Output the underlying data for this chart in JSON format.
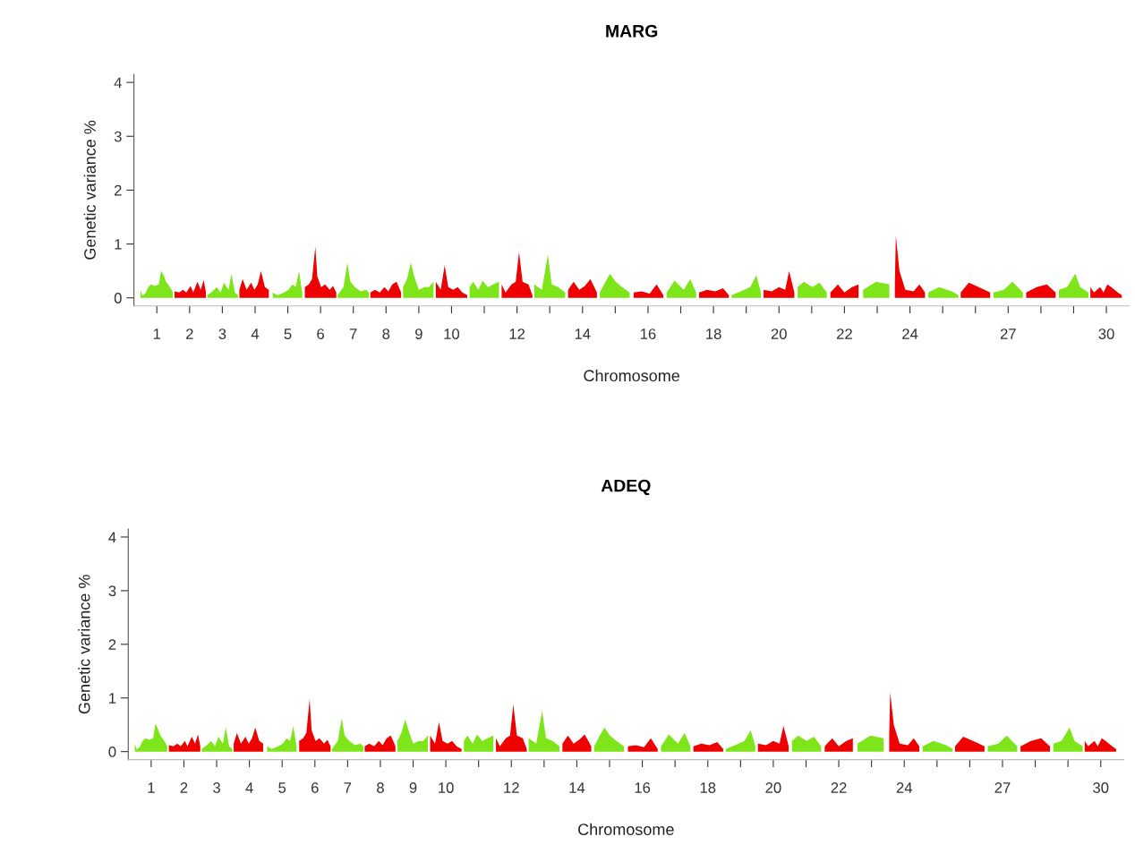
{
  "chart_data": [
    {
      "type": "area",
      "title": "MARG",
      "xlabel": "Chromosome",
      "ylabel": "Genetic variance %",
      "xlim": [
        0.3,
        30.7
      ],
      "ylim": [
        -0.15,
        4.15
      ],
      "yticks": [
        0,
        1,
        2,
        3,
        4
      ],
      "xticks": [
        1,
        2,
        3,
        4,
        5,
        6,
        7,
        8,
        9,
        10,
        {
          "value": 11,
          "label": null
        },
        12,
        {
          "value": 13,
          "label": null
        },
        14,
        {
          "value": 15,
          "label": null
        },
        16,
        {
          "value": 17,
          "label": null
        },
        18,
        {
          "value": 19,
          "label": null
        },
        20,
        {
          "value": 21,
          "label": null
        },
        22,
        {
          "value": 23,
          "label": null
        },
        24,
        {
          "value": 25,
          "label": null
        },
        {
          "value": 26,
          "label": null
        },
        27,
        {
          "value": 28,
          "label": null
        },
        {
          "value": 29,
          "label": null
        },
        30
      ],
      "series": [
        {
          "color": "#7ee51a",
          "x": [
            0.5,
            0.56,
            0.65,
            0.74,
            0.82,
            0.94,
            1.06,
            1.13,
            1.21,
            1.28,
            1.38,
            1.49
          ],
          "values": [
            0.15,
            0.04,
            0.08,
            0.2,
            0.25,
            0.22,
            0.25,
            0.5,
            0.42,
            0.3,
            0.22,
            0.1
          ]
        },
        {
          "color": "#ee0000",
          "x": [
            1.54,
            1.68,
            1.8,
            1.9,
            2.03,
            2.11,
            2.24,
            2.34,
            2.43,
            2.5
          ],
          "values": [
            0.12,
            0.1,
            0.15,
            0.1,
            0.22,
            0.1,
            0.3,
            0.15,
            0.33,
            0.1
          ]
        },
        {
          "color": "#7ee51a",
          "x": [
            2.54,
            2.7,
            2.83,
            2.95,
            3.05,
            3.19,
            3.28,
            3.38,
            3.48
          ],
          "values": [
            0.05,
            0.12,
            0.2,
            0.1,
            0.28,
            0.15,
            0.45,
            0.1,
            0.05
          ]
        },
        {
          "color": "#ee0000",
          "x": [
            3.52,
            3.62,
            3.74,
            3.88,
            3.98,
            4.08,
            4.18,
            4.3,
            4.42
          ],
          "values": [
            0.15,
            0.35,
            0.15,
            0.28,
            0.15,
            0.25,
            0.5,
            0.2,
            0.15
          ]
        },
        {
          "color": "#7ee51a",
          "x": [
            4.54,
            4.68,
            4.88,
            5.02,
            5.14,
            5.24,
            5.34,
            5.44
          ],
          "values": [
            0.1,
            0.05,
            0.1,
            0.15,
            0.25,
            0.2,
            0.5,
            0.1
          ]
        },
        {
          "color": "#ee0000",
          "x": [
            5.52,
            5.64,
            5.74,
            5.84,
            5.9,
            6.02,
            6.14,
            6.28,
            6.38,
            6.48
          ],
          "values": [
            0.2,
            0.25,
            0.35,
            0.95,
            0.4,
            0.2,
            0.25,
            0.15,
            0.22,
            0.1
          ]
        },
        {
          "color": "#7ee51a",
          "x": [
            6.52,
            6.7,
            6.82,
            6.91,
            7.05,
            7.23,
            7.39,
            7.48
          ],
          "values": [
            0.05,
            0.2,
            0.65,
            0.3,
            0.2,
            0.12,
            0.15,
            0.1
          ]
        },
        {
          "color": "#ee0000",
          "x": [
            7.52,
            7.66,
            7.81,
            7.95,
            8.07,
            8.19,
            8.32,
            8.46
          ],
          "values": [
            0.1,
            0.15,
            0.1,
            0.2,
            0.12,
            0.25,
            0.3,
            0.1
          ]
        },
        {
          "color": "#7ee51a",
          "x": [
            8.52,
            8.64,
            8.76,
            8.86,
            9.0,
            9.17,
            9.31,
            9.45
          ],
          "values": [
            0.2,
            0.35,
            0.65,
            0.4,
            0.15,
            0.2,
            0.2,
            0.3
          ]
        },
        {
          "color": "#ee0000",
          "x": [
            9.52,
            9.67,
            9.79,
            9.9,
            10.05,
            10.19,
            10.33,
            10.48
          ],
          "values": [
            0.3,
            0.15,
            0.6,
            0.2,
            0.15,
            0.2,
            0.1,
            0.05
          ]
        },
        {
          "color": "#7ee51a",
          "x": [
            10.55,
            10.66,
            10.82,
            10.95,
            11.11,
            11.27,
            11.45
          ],
          "values": [
            0.2,
            0.3,
            0.15,
            0.32,
            0.2,
            0.25,
            0.3
          ]
        },
        {
          "color": "#ee0000",
          "x": [
            11.53,
            11.65,
            11.83,
            11.96,
            12.06,
            12.17,
            12.35,
            12.47
          ],
          "values": [
            0.25,
            0.1,
            0.25,
            0.3,
            0.85,
            0.3,
            0.25,
            0.05
          ]
        },
        {
          "color": "#7ee51a",
          "x": [
            12.53,
            12.76,
            12.94,
            13.06,
            13.26,
            13.47
          ],
          "values": [
            0.25,
            0.15,
            0.8,
            0.25,
            0.2,
            0.1
          ]
        },
        {
          "color": "#ee0000",
          "x": [
            13.56,
            13.73,
            13.9,
            14.07,
            14.24,
            14.44
          ],
          "values": [
            0.15,
            0.3,
            0.15,
            0.22,
            0.35,
            0.1
          ]
        },
        {
          "color": "#7ee51a",
          "x": [
            14.53,
            14.7,
            14.84,
            15.01,
            15.21,
            15.44
          ],
          "values": [
            0.1,
            0.3,
            0.45,
            0.3,
            0.2,
            0.1
          ]
        },
        {
          "color": "#ee0000",
          "x": [
            15.56,
            15.8,
            16.05,
            16.26,
            16.47
          ],
          "values": [
            0.1,
            0.12,
            0.08,
            0.25,
            0.05
          ]
        },
        {
          "color": "#7ee51a",
          "x": [
            16.57,
            16.81,
            17.09,
            17.29,
            17.47
          ],
          "values": [
            0.1,
            0.32,
            0.15,
            0.35,
            0.1
          ]
        },
        {
          "color": "#ee0000",
          "x": [
            17.56,
            17.8,
            18.05,
            18.29,
            18.47
          ],
          "values": [
            0.1,
            0.15,
            0.12,
            0.18,
            0.05
          ]
        },
        {
          "color": "#7ee51a",
          "x": [
            18.55,
            18.83,
            19.12,
            19.31,
            19.45
          ],
          "values": [
            0.05,
            0.12,
            0.2,
            0.42,
            0.1
          ]
        },
        {
          "color": "#ee0000",
          "x": [
            19.53,
            19.78,
            20.0,
            20.19,
            20.31,
            20.47
          ],
          "values": [
            0.15,
            0.12,
            0.2,
            0.15,
            0.5,
            0.1
          ]
        },
        {
          "color": "#7ee51a",
          "x": [
            20.57,
            20.76,
            21.02,
            21.24,
            21.46
          ],
          "values": [
            0.2,
            0.3,
            0.2,
            0.28,
            0.1
          ]
        },
        {
          "color": "#ee0000",
          "x": [
            21.57,
            21.8,
            22.0,
            22.23,
            22.43
          ],
          "values": [
            0.1,
            0.25,
            0.1,
            0.2,
            0.25
          ]
        },
        {
          "color": "#7ee51a",
          "x": [
            22.57,
            22.97,
            23.37
          ],
          "values": [
            0.15,
            0.3,
            0.25
          ]
        },
        {
          "color": "#ee0000",
          "x": [
            23.54,
            23.57,
            23.68,
            23.86,
            24.11,
            24.29,
            24.46
          ],
          "values": [
            0.3,
            1.15,
            0.5,
            0.15,
            0.12,
            0.25,
            0.1
          ]
        },
        {
          "color": "#7ee51a",
          "x": [
            24.56,
            24.89,
            25.28,
            25.48
          ],
          "values": [
            0.1,
            0.2,
            0.12,
            0.05
          ]
        },
        {
          "color": "#ee0000",
          "x": [
            25.55,
            25.8,
            26.1,
            26.45
          ],
          "values": [
            0.1,
            0.28,
            0.2,
            0.1
          ]
        },
        {
          "color": "#7ee51a",
          "x": [
            26.55,
            26.87,
            27.13,
            27.45
          ],
          "values": [
            0.1,
            0.15,
            0.3,
            0.1
          ]
        },
        {
          "color": "#ee0000",
          "x": [
            27.55,
            27.87,
            28.18,
            28.45
          ],
          "values": [
            0.1,
            0.2,
            0.25,
            0.1
          ]
        },
        {
          "color": "#7ee51a",
          "x": [
            28.55,
            28.8,
            29.05,
            29.2,
            29.45
          ],
          "values": [
            0.15,
            0.2,
            0.45,
            0.2,
            0.1
          ]
        },
        {
          "color": "#ee0000",
          "x": [
            29.51,
            29.62,
            29.71,
            29.81,
            29.91,
            30.03,
            30.15,
            30.25,
            30.35,
            30.47
          ],
          "values": [
            0.2,
            0.1,
            0.15,
            0.2,
            0.1,
            0.25,
            0.2,
            0.15,
            0.1,
            0.05
          ]
        }
      ]
    },
    {
      "type": "area",
      "title": "ADEQ",
      "xlabel": "Chromosome",
      "ylabel": "Genetic variance %",
      "xlim": [
        0.3,
        30.7
      ],
      "ylim": [
        -0.15,
        4.15
      ],
      "yticks": [
        0,
        1,
        2,
        3,
        4
      ],
      "xticks": [
        1,
        2,
        3,
        4,
        5,
        6,
        7,
        8,
        9,
        10,
        {
          "value": 11,
          "label": null
        },
        12,
        {
          "value": 13,
          "label": null
        },
        14,
        {
          "value": 15,
          "label": null
        },
        16,
        {
          "value": 17,
          "label": null
        },
        18,
        {
          "value": 19,
          "label": null
        },
        20,
        {
          "value": 21,
          "label": null
        },
        22,
        {
          "value": 23,
          "label": null
        },
        24,
        {
          "value": 25,
          "label": null
        },
        {
          "value": 26,
          "label": null
        },
        27,
        {
          "value": 28,
          "label": null
        },
        {
          "value": 29,
          "label": null
        },
        30
      ],
      "series": [
        {
          "color": "#7ee51a",
          "x": [
            0.5,
            0.56,
            0.65,
            0.74,
            0.82,
            0.94,
            1.06,
            1.13,
            1.21,
            1.28,
            1.38,
            1.49
          ],
          "values": [
            0.15,
            0.04,
            0.08,
            0.2,
            0.25,
            0.22,
            0.25,
            0.52,
            0.42,
            0.3,
            0.22,
            0.1
          ]
        },
        {
          "color": "#ee0000",
          "x": [
            1.54,
            1.68,
            1.8,
            1.9,
            2.03,
            2.11,
            2.24,
            2.34,
            2.43,
            2.5
          ],
          "values": [
            0.12,
            0.1,
            0.15,
            0.1,
            0.2,
            0.1,
            0.28,
            0.15,
            0.32,
            0.1
          ]
        },
        {
          "color": "#7ee51a",
          "x": [
            2.54,
            2.7,
            2.83,
            2.95,
            3.05,
            3.19,
            3.28,
            3.38,
            3.48
          ],
          "values": [
            0.05,
            0.12,
            0.2,
            0.1,
            0.28,
            0.15,
            0.45,
            0.1,
            0.05
          ]
        },
        {
          "color": "#ee0000",
          "x": [
            3.52,
            3.62,
            3.74,
            3.88,
            3.98,
            4.08,
            4.18,
            4.3,
            4.42
          ],
          "values": [
            0.15,
            0.35,
            0.15,
            0.28,
            0.15,
            0.25,
            0.45,
            0.2,
            0.15
          ]
        },
        {
          "color": "#7ee51a",
          "x": [
            4.54,
            4.68,
            4.88,
            5.02,
            5.14,
            5.24,
            5.34,
            5.44
          ],
          "values": [
            0.1,
            0.05,
            0.1,
            0.15,
            0.25,
            0.2,
            0.48,
            0.1
          ]
        },
        {
          "color": "#ee0000",
          "x": [
            5.52,
            5.64,
            5.74,
            5.84,
            5.9,
            6.02,
            6.14,
            6.28,
            6.38,
            6.48
          ],
          "values": [
            0.2,
            0.25,
            0.35,
            0.98,
            0.4,
            0.2,
            0.25,
            0.15,
            0.22,
            0.1
          ]
        },
        {
          "color": "#7ee51a",
          "x": [
            6.52,
            6.7,
            6.82,
            6.91,
            7.05,
            7.23,
            7.39,
            7.48
          ],
          "values": [
            0.05,
            0.2,
            0.62,
            0.3,
            0.2,
            0.12,
            0.15,
            0.1
          ]
        },
        {
          "color": "#ee0000",
          "x": [
            7.52,
            7.66,
            7.81,
            7.95,
            8.07,
            8.19,
            8.32,
            8.46
          ],
          "values": [
            0.1,
            0.15,
            0.1,
            0.2,
            0.12,
            0.25,
            0.3,
            0.1
          ]
        },
        {
          "color": "#7ee51a",
          "x": [
            8.52,
            8.64,
            8.76,
            8.86,
            9.0,
            9.17,
            9.31,
            9.45
          ],
          "values": [
            0.2,
            0.35,
            0.6,
            0.4,
            0.15,
            0.2,
            0.2,
            0.3
          ]
        },
        {
          "color": "#ee0000",
          "x": [
            9.52,
            9.67,
            9.79,
            9.9,
            10.05,
            10.19,
            10.33,
            10.48
          ],
          "values": [
            0.3,
            0.15,
            0.55,
            0.2,
            0.15,
            0.2,
            0.1,
            0.05
          ]
        },
        {
          "color": "#7ee51a",
          "x": [
            10.55,
            10.66,
            10.82,
            10.95,
            11.11,
            11.27,
            11.45
          ],
          "values": [
            0.2,
            0.3,
            0.15,
            0.32,
            0.2,
            0.25,
            0.3
          ]
        },
        {
          "color": "#ee0000",
          "x": [
            11.53,
            11.65,
            11.83,
            11.96,
            12.06,
            12.17,
            12.35,
            12.47
          ],
          "values": [
            0.25,
            0.1,
            0.25,
            0.3,
            0.88,
            0.3,
            0.25,
            0.05
          ]
        },
        {
          "color": "#7ee51a",
          "x": [
            12.53,
            12.76,
            12.94,
            13.06,
            13.26,
            13.47
          ],
          "values": [
            0.25,
            0.15,
            0.76,
            0.25,
            0.2,
            0.1
          ]
        },
        {
          "color": "#ee0000",
          "x": [
            13.56,
            13.73,
            13.9,
            14.07,
            14.24,
            14.44
          ],
          "values": [
            0.15,
            0.3,
            0.15,
            0.22,
            0.32,
            0.1
          ]
        },
        {
          "color": "#7ee51a",
          "x": [
            14.53,
            14.7,
            14.84,
            15.01,
            15.21,
            15.44
          ],
          "values": [
            0.1,
            0.3,
            0.45,
            0.3,
            0.2,
            0.1
          ]
        },
        {
          "color": "#ee0000",
          "x": [
            15.56,
            15.8,
            16.05,
            16.26,
            16.47
          ],
          "values": [
            0.1,
            0.12,
            0.08,
            0.25,
            0.05
          ]
        },
        {
          "color": "#7ee51a",
          "x": [
            16.57,
            16.81,
            17.09,
            17.29,
            17.47
          ],
          "values": [
            0.1,
            0.32,
            0.15,
            0.35,
            0.1
          ]
        },
        {
          "color": "#ee0000",
          "x": [
            17.56,
            17.8,
            18.05,
            18.29,
            18.47
          ],
          "values": [
            0.1,
            0.15,
            0.12,
            0.18,
            0.05
          ]
        },
        {
          "color": "#7ee51a",
          "x": [
            18.55,
            18.83,
            19.12,
            19.31,
            19.45
          ],
          "values": [
            0.05,
            0.12,
            0.2,
            0.4,
            0.1
          ]
        },
        {
          "color": "#ee0000",
          "x": [
            19.53,
            19.78,
            20.0,
            20.19,
            20.31,
            20.47
          ],
          "values": [
            0.15,
            0.12,
            0.2,
            0.15,
            0.48,
            0.1
          ]
        },
        {
          "color": "#7ee51a",
          "x": [
            20.57,
            20.76,
            21.02,
            21.24,
            21.46
          ],
          "values": [
            0.2,
            0.3,
            0.2,
            0.28,
            0.1
          ]
        },
        {
          "color": "#ee0000",
          "x": [
            21.57,
            21.8,
            22.0,
            22.23,
            22.43
          ],
          "values": [
            0.1,
            0.25,
            0.1,
            0.2,
            0.25
          ]
        },
        {
          "color": "#7ee51a",
          "x": [
            22.57,
            22.97,
            23.37
          ],
          "values": [
            0.15,
            0.3,
            0.25
          ]
        },
        {
          "color": "#ee0000",
          "x": [
            23.54,
            23.57,
            23.68,
            23.86,
            24.11,
            24.29,
            24.46
          ],
          "values": [
            0.3,
            1.1,
            0.5,
            0.15,
            0.12,
            0.25,
            0.1
          ]
        },
        {
          "color": "#7ee51a",
          "x": [
            24.56,
            24.89,
            25.28,
            25.48
          ],
          "values": [
            0.1,
            0.2,
            0.12,
            0.05
          ]
        },
        {
          "color": "#ee0000",
          "x": [
            25.55,
            25.8,
            26.1,
            26.45
          ],
          "values": [
            0.1,
            0.28,
            0.2,
            0.1
          ]
        },
        {
          "color": "#7ee51a",
          "x": [
            26.55,
            26.87,
            27.13,
            27.45
          ],
          "values": [
            0.1,
            0.15,
            0.3,
            0.1
          ]
        },
        {
          "color": "#ee0000",
          "x": [
            27.55,
            27.87,
            28.18,
            28.45
          ],
          "values": [
            0.1,
            0.2,
            0.25,
            0.1
          ]
        },
        {
          "color": "#7ee51a",
          "x": [
            28.55,
            28.8,
            29.05,
            29.2,
            29.45
          ],
          "values": [
            0.15,
            0.2,
            0.45,
            0.2,
            0.1
          ]
        },
        {
          "color": "#ee0000",
          "x": [
            29.51,
            29.62,
            29.71,
            29.81,
            29.91,
            30.03,
            30.15,
            30.25,
            30.35,
            30.47
          ],
          "values": [
            0.2,
            0.1,
            0.15,
            0.2,
            0.1,
            0.25,
            0.2,
            0.15,
            0.1,
            0.05
          ]
        }
      ]
    }
  ]
}
